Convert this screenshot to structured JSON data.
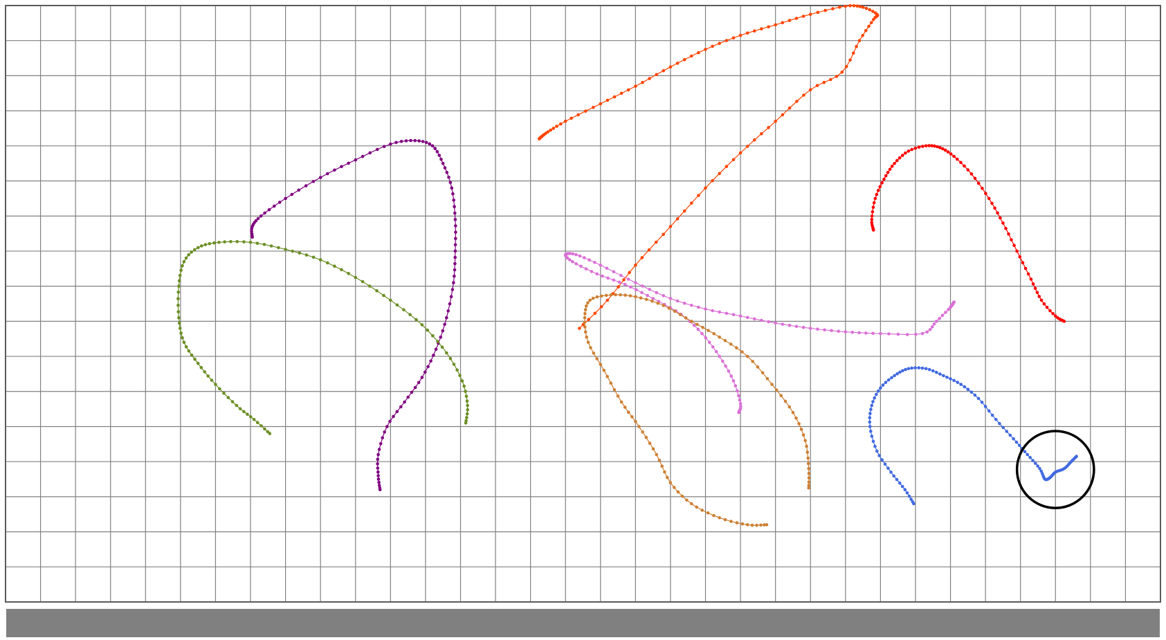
{
  "canvas": {
    "grid": {
      "columns": 33,
      "rows": 17,
      "line_color": "#808080",
      "border_color": "#5a5a5a",
      "background": "#ffffff"
    },
    "bottom_bar": {
      "color": "#808080"
    },
    "highlight_circle": {
      "color": "#000000",
      "target_trajectory": "blue"
    },
    "trajectories": [
      {
        "name": "orange-red",
        "color": "#ff4500",
        "points": [
          [
            16.4,
            9.2
          ],
          [
            17.2,
            8.4
          ],
          [
            18.0,
            7.4
          ],
          [
            19.0,
            6.3
          ],
          [
            20.0,
            5.2
          ],
          [
            21.0,
            4.2
          ],
          [
            22.0,
            3.3
          ],
          [
            23.0,
            2.4
          ],
          [
            23.9,
            1.9
          ],
          [
            24.4,
            1.0
          ],
          [
            24.8,
            0.4
          ],
          [
            24.9,
            0.25
          ],
          [
            24.5,
            0.05
          ],
          [
            24.0,
            0.02
          ],
          [
            23.0,
            0.25
          ],
          [
            22.0,
            0.55
          ],
          [
            21.0,
            0.85
          ],
          [
            20.0,
            1.25
          ],
          [
            19.0,
            1.75
          ],
          [
            18.0,
            2.3
          ],
          [
            17.0,
            2.8
          ],
          [
            16.0,
            3.3
          ],
          [
            15.5,
            3.6
          ],
          [
            15.3,
            3.75
          ],
          [
            15.25,
            3.8
          ]
        ]
      },
      {
        "name": "red",
        "color": "#ff0000",
        "points": [
          [
            24.8,
            6.4
          ],
          [
            24.75,
            6.1
          ],
          [
            24.85,
            5.5
          ],
          [
            25.1,
            4.95
          ],
          [
            25.4,
            4.5
          ],
          [
            25.8,
            4.15
          ],
          [
            26.3,
            4.0
          ],
          [
            26.7,
            4.05
          ],
          [
            27.1,
            4.3
          ],
          [
            27.6,
            4.8
          ],
          [
            28.1,
            5.5
          ],
          [
            28.5,
            6.2
          ],
          [
            28.9,
            7.0
          ],
          [
            29.3,
            7.8
          ],
          [
            29.6,
            8.4
          ],
          [
            30.0,
            8.85
          ],
          [
            30.25,
            9.0
          ]
        ]
      },
      {
        "name": "purple",
        "color": "#800080",
        "points": [
          [
            10.7,
            13.8
          ],
          [
            10.65,
            13.4
          ],
          [
            10.65,
            12.8
          ],
          [
            10.9,
            12.0
          ],
          [
            11.4,
            11.3
          ],
          [
            11.9,
            10.6
          ],
          [
            12.3,
            9.8
          ],
          [
            12.6,
            8.9
          ],
          [
            12.8,
            7.9
          ],
          [
            12.85,
            7.0
          ],
          [
            12.85,
            6.1
          ],
          [
            12.75,
            5.2
          ],
          [
            12.5,
            4.5
          ],
          [
            12.2,
            4.0
          ],
          [
            11.7,
            3.85
          ],
          [
            11.0,
            3.95
          ],
          [
            10.0,
            4.4
          ],
          [
            9.0,
            4.9
          ],
          [
            8.0,
            5.5
          ],
          [
            7.3,
            6.0
          ],
          [
            7.05,
            6.3
          ],
          [
            7.05,
            6.6
          ]
        ]
      },
      {
        "name": "olive-green",
        "color": "#6b8e23",
        "points": [
          [
            7.55,
            12.2
          ],
          [
            7.1,
            11.8
          ],
          [
            6.6,
            11.4
          ],
          [
            6.0,
            10.8
          ],
          [
            5.5,
            10.2
          ],
          [
            5.1,
            9.6
          ],
          [
            4.95,
            8.9
          ],
          [
            4.95,
            8.0
          ],
          [
            5.1,
            7.3
          ],
          [
            5.5,
            6.9
          ],
          [
            6.1,
            6.75
          ],
          [
            7.0,
            6.75
          ],
          [
            8.0,
            6.95
          ],
          [
            9.0,
            7.25
          ],
          [
            10.0,
            7.75
          ],
          [
            11.0,
            8.4
          ],
          [
            11.9,
            9.1
          ],
          [
            12.6,
            9.9
          ],
          [
            13.05,
            10.7
          ],
          [
            13.2,
            11.4
          ],
          [
            13.15,
            11.9
          ]
        ]
      },
      {
        "name": "violet",
        "color": "#da70d6",
        "points": [
          [
            20.95,
            11.6
          ],
          [
            21.0,
            11.35
          ],
          [
            20.8,
            10.7
          ],
          [
            20.4,
            10.0
          ],
          [
            19.9,
            9.35
          ],
          [
            19.3,
            8.8
          ],
          [
            18.5,
            8.35
          ],
          [
            17.7,
            7.95
          ],
          [
            16.9,
            7.65
          ],
          [
            16.2,
            7.3
          ],
          [
            16.0,
            7.1
          ],
          [
            16.3,
            7.1
          ],
          [
            17.0,
            7.4
          ],
          [
            18.0,
            7.9
          ],
          [
            19.0,
            8.35
          ],
          [
            20.0,
            8.65
          ],
          [
            21.0,
            8.85
          ],
          [
            22.0,
            9.05
          ],
          [
            23.0,
            9.2
          ],
          [
            24.0,
            9.3
          ],
          [
            25.0,
            9.35
          ],
          [
            26.2,
            9.35
          ],
          [
            26.6,
            9.0
          ],
          [
            27.0,
            8.6
          ],
          [
            27.1,
            8.45
          ],
          [
            27.0,
            8.6
          ]
        ]
      },
      {
        "name": "peru",
        "color": "#cd7f32",
        "points": [
          [
            21.75,
            14.8
          ],
          [
            21.2,
            14.8
          ],
          [
            20.4,
            14.6
          ],
          [
            19.6,
            14.2
          ],
          [
            19.0,
            13.6
          ],
          [
            18.6,
            12.8
          ],
          [
            18.1,
            12.0
          ],
          [
            17.6,
            11.3
          ],
          [
            17.1,
            10.4
          ],
          [
            16.65,
            9.6
          ],
          [
            16.55,
            8.9
          ],
          [
            16.7,
            8.4
          ],
          [
            17.3,
            8.25
          ],
          [
            18.0,
            8.3
          ],
          [
            18.8,
            8.55
          ],
          [
            19.6,
            9.0
          ],
          [
            20.4,
            9.45
          ],
          [
            21.2,
            10.0
          ],
          [
            21.9,
            10.8
          ],
          [
            22.5,
            11.6
          ],
          [
            22.85,
            12.4
          ],
          [
            22.95,
            13.2
          ],
          [
            22.95,
            13.75
          ]
        ]
      },
      {
        "name": "blue",
        "color": "#4169e1",
        "points": [
          [
            25.95,
            14.2
          ],
          [
            25.7,
            13.8
          ],
          [
            25.3,
            13.3
          ],
          [
            24.9,
            12.7
          ],
          [
            24.7,
            12.0
          ],
          [
            24.75,
            11.4
          ],
          [
            25.0,
            10.9
          ],
          [
            25.4,
            10.55
          ],
          [
            25.8,
            10.35
          ],
          [
            26.3,
            10.35
          ],
          [
            26.8,
            10.55
          ],
          [
            27.3,
            10.8
          ],
          [
            27.8,
            11.2
          ],
          [
            28.3,
            11.8
          ],
          [
            28.8,
            12.35
          ],
          [
            29.2,
            12.8
          ],
          [
            29.55,
            13.2
          ],
          [
            29.7,
            13.5
          ],
          [
            29.85,
            13.45
          ],
          [
            30.0,
            13.3
          ],
          [
            30.25,
            13.2
          ],
          [
            30.45,
            13.0
          ],
          [
            30.6,
            12.85
          ]
        ]
      }
    ]
  }
}
